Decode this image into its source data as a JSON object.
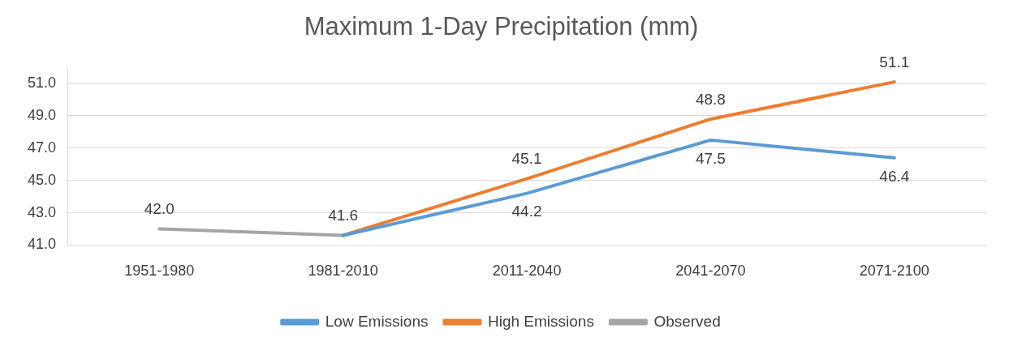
{
  "chart_data": {
    "type": "line",
    "title": "Maximum 1-Day Precipitation (mm)",
    "categories": [
      "1951-1980",
      "1981-2010",
      "2011-2040",
      "2041-2070",
      "2071-2100"
    ],
    "series": [
      {
        "name": "Low Emissions",
        "color": "#5b9bd5",
        "values": [
          null,
          41.6,
          44.2,
          47.5,
          46.4
        ],
        "value_labels": [
          null,
          null,
          "44.2",
          "47.5",
          "46.4"
        ]
      },
      {
        "name": "High Emissions",
        "color": "#ed7d31",
        "values": [
          null,
          41.6,
          45.1,
          48.8,
          51.1
        ],
        "value_labels": [
          null,
          null,
          "45.1",
          "48.8",
          "51.1"
        ]
      },
      {
        "name": "Observed",
        "color": "#a5a5a5",
        "values": [
          42.0,
          41.6,
          null,
          null,
          null
        ],
        "value_labels": [
          "42.0",
          "41.6",
          null,
          null,
          null
        ]
      }
    ],
    "ylim": [
      41,
      52
    ],
    "yticks": [
      {
        "value": 41,
        "label": "41.0"
      },
      {
        "value": 43,
        "label": "43.0"
      },
      {
        "value": 45,
        "label": "45.0"
      },
      {
        "value": 47,
        "label": "47.0"
      },
      {
        "value": 49,
        "label": "49.0"
      },
      {
        "value": 51,
        "label": "51.0"
      }
    ],
    "grid": "y",
    "legend": "bottom",
    "marker": "none",
    "line_style": "solid"
  }
}
